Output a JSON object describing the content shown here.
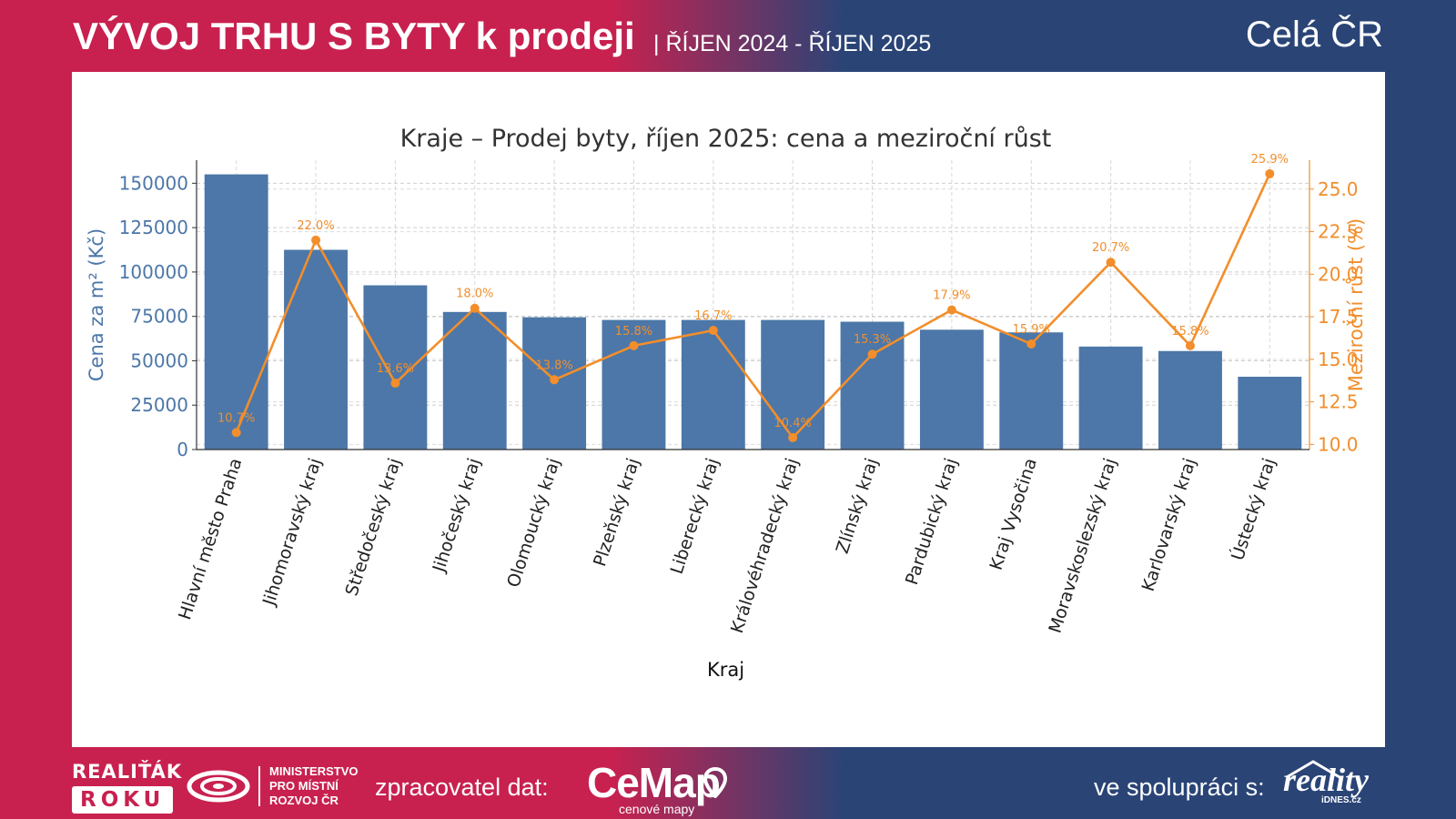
{
  "header": {
    "title": "VÝVOJ TRHU S BYTY k prodeji",
    "subtitle": "| ŘÍJEN 2024 - ŘÍJEN 2025",
    "region": "Celá ČR"
  },
  "footer": {
    "realitak_line1": "REALIŤÁK",
    "realitak_line2": "ROKU",
    "ministry_line1": "MINISTERSTVO",
    "ministry_line2": "PRO MÍSTNÍ",
    "ministry_line3": "ROZVOJ ČR",
    "processor_label": "zpracovatel dat:",
    "cemap_name": "CeMap",
    "cemap_tagline": "cenové mapy",
    "cooperation_label": "ve spolupráci s:",
    "reality_name": "reality",
    "reality_domain": "iDNES.cz"
  },
  "colors": {
    "header_left": "#c8214f",
    "header_right": "#2a4476",
    "bar": "#4c77a8",
    "line": "#f28e2b",
    "grid": "#b0b0b0"
  },
  "chart_data": {
    "type": "bar",
    "title": "Kraje – Prodej byty, říjen 2025: cena a meziroční růst",
    "xlabel": "Kraj",
    "ylabel": "Cena za m² (Kč)",
    "y2label": "Meziroční růst (%)",
    "categories": [
      "Hlavní město Praha",
      "Jihomoravský kraj",
      "Středočeský kraj",
      "Jihočeský kraj",
      "Olomoucký kraj",
      "Plzeňský kraj",
      "Liberecký kraj",
      "Královéhradecký kraj",
      "Zlínský kraj",
      "Pardubický kraj",
      "Kraj Vysočina",
      "Moravskoslezský kraj",
      "Karlovarský kraj",
      "Ústecký kraj"
    ],
    "series": [
      {
        "type": "bar",
        "axis": "left",
        "values": [
          155000,
          112500,
          92500,
          77500,
          74500,
          73000,
          73000,
          73000,
          72000,
          67500,
          66000,
          58000,
          55500,
          41000
        ]
      },
      {
        "type": "line",
        "axis": "right",
        "values": [
          10.7,
          22.0,
          13.6,
          18.0,
          13.8,
          15.8,
          16.7,
          10.4,
          15.3,
          17.9,
          15.9,
          20.7,
          15.8,
          25.9
        ],
        "labels": [
          "10.7%",
          "22.0%",
          "13.6%",
          "18.0%",
          "13.8%",
          "15.8%",
          "16.7%",
          "10.4%",
          "15.3%",
          "17.9%",
          "15.9%",
          "20.7%",
          "15.8%",
          "25.9%"
        ]
      }
    ],
    "ylim": [
      0,
      163000
    ],
    "y_ticks": [
      "0",
      "25000",
      "50000",
      "75000",
      "100000",
      "125000",
      "150000"
    ],
    "y2lim": [
      9.7,
      26.7
    ],
    "y2_ticks": [
      "10.0",
      "12.5",
      "15.0",
      "17.5",
      "20.0",
      "22.5",
      "25.0"
    ],
    "grid": true
  }
}
